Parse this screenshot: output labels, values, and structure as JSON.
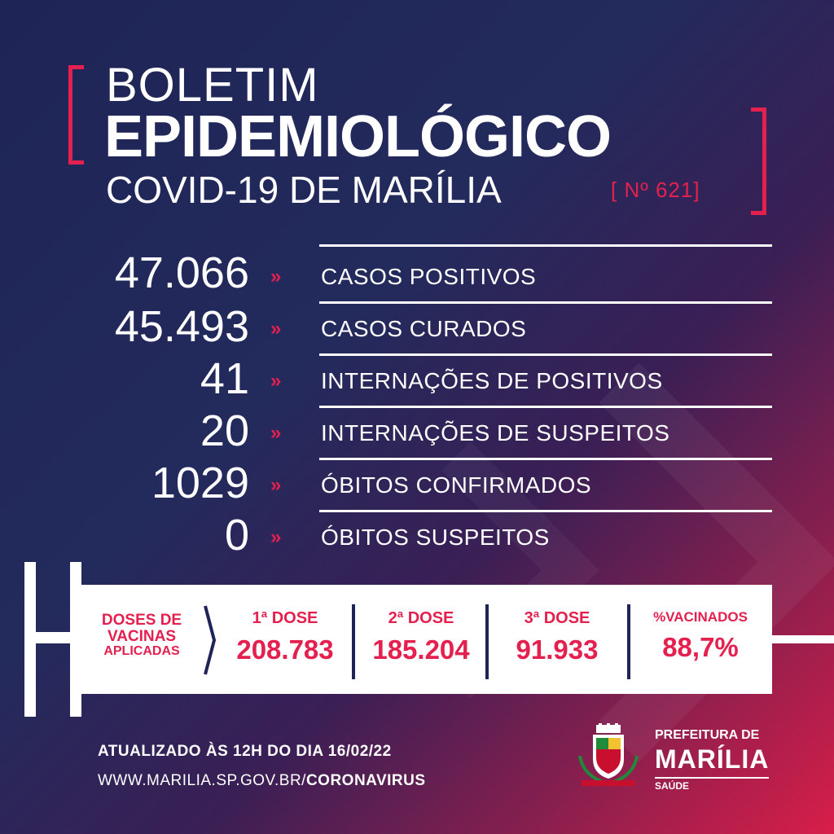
{
  "header": {
    "line1": "BOLETIM",
    "line2": "EPIDEMIOLÓGICO",
    "line3": "COVID-19 DE MARÍLIA",
    "number": "[ Nº 621]"
  },
  "stats": [
    {
      "value": "47.066",
      "label": "CASOS POSITIVOS"
    },
    {
      "value": "45.493",
      "label": "CASOS CURADOS"
    },
    {
      "value": "41",
      "label": "INTERNAÇÕES DE POSITIVOS"
    },
    {
      "value": "20",
      "label": "INTERNAÇÕES DE SUSPEITOS"
    },
    {
      "value": "1029",
      "label": "ÓBITOS CONFIRMADOS"
    },
    {
      "value": "0",
      "label": "ÓBITOS SUSPEITOS"
    }
  ],
  "stat_arrow": "»",
  "vaccination": {
    "caption": [
      "DOSES DE",
      "VACINAS",
      "APLICADAS"
    ],
    "doses": [
      {
        "label": "1ª DOSE",
        "value": "208.783"
      },
      {
        "label": "2ª DOSE",
        "value": "185.204"
      },
      {
        "label": "3ª DOSE",
        "value": "91.933"
      },
      {
        "label": "%VACINADOS",
        "value": "88,7%"
      }
    ]
  },
  "footer": {
    "updated": "ATUALIZADO ÀS 12H DO DIA 16/02/22",
    "url_prefix": "WWW.MARILIA.SP.GOV.BR/",
    "url_suffix": "CORONAVIRUS"
  },
  "logo": {
    "line1": "PREFEITURA DE",
    "line2": "MARÍLIA",
    "line3": "SAÚDE"
  },
  "colors": {
    "accent": "#e4204f",
    "navy": "#1e2456",
    "white": "#ffffff"
  }
}
